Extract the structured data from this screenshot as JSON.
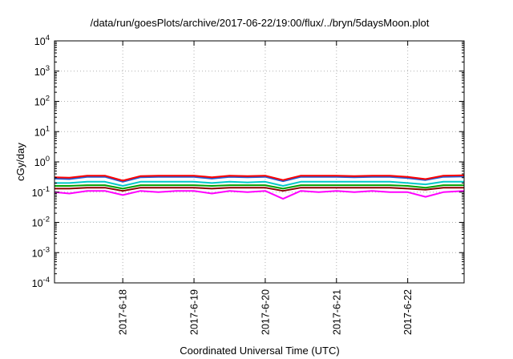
{
  "chart_data": {
    "type": "line",
    "title": "/data/run/goesPlots/archive/2017-06-22/19:00/flux/../bryn/5daysMoon.plot",
    "xlabel": "Coordinated Universal Time (UTC)",
    "ylabel": "cGy/day",
    "yscale": "log",
    "ylim": [
      0.0001,
      10000
    ],
    "xlim": [
      "2017-06-17T01:00",
      "2017-06-22T19:00"
    ],
    "grid": true,
    "legend": "none",
    "y_ticks": [
      {
        "base": "10",
        "exp": "-4"
      },
      {
        "base": "10",
        "exp": "-3"
      },
      {
        "base": "10",
        "exp": "-2"
      },
      {
        "base": "10",
        "exp": "-1"
      },
      {
        "base": "10",
        "exp": "0"
      },
      {
        "base": "10",
        "exp": "1"
      },
      {
        "base": "10",
        "exp": "2"
      },
      {
        "base": "10",
        "exp": "3"
      },
      {
        "base": "10",
        "exp": "4"
      }
    ],
    "x_ticks": [
      "2017-6-18",
      "2017-6-19",
      "2017-6-20",
      "2017-6-21",
      "2017-6-22"
    ],
    "series": [
      {
        "color": "#ff00ff",
        "x": [
          "2017-06-17T01:00",
          "2017-06-17T06:00",
          "2017-06-17T12:00",
          "2017-06-17T18:00",
          "2017-06-18T00:00",
          "2017-06-18T06:00",
          "2017-06-18T12:00",
          "2017-06-18T18:00",
          "2017-06-19T00:00",
          "2017-06-19T06:00",
          "2017-06-19T12:00",
          "2017-06-19T18:00",
          "2017-06-20T00:00",
          "2017-06-20T06:00",
          "2017-06-20T12:00",
          "2017-06-20T18:00",
          "2017-06-21T00:00",
          "2017-06-21T06:00",
          "2017-06-21T12:00",
          "2017-06-21T18:00",
          "2017-06-22T00:00",
          "2017-06-22T06:00",
          "2017-06-22T12:00",
          "2017-06-22T19:00"
        ],
        "values": [
          0.1,
          0.09,
          0.11,
          0.11,
          0.08,
          0.11,
          0.1,
          0.11,
          0.11,
          0.09,
          0.11,
          0.1,
          0.11,
          0.06,
          0.11,
          0.1,
          0.11,
          0.1,
          0.11,
          0.1,
          0.1,
          0.07,
          0.1,
          0.11
        ]
      },
      {
        "color": "#8b0000",
        "x": [
          "2017-06-17T01:00",
          "2017-06-17T06:00",
          "2017-06-17T12:00",
          "2017-06-17T18:00",
          "2017-06-18T00:00",
          "2017-06-18T06:00",
          "2017-06-18T12:00",
          "2017-06-18T18:00",
          "2017-06-19T00:00",
          "2017-06-19T06:00",
          "2017-06-19T12:00",
          "2017-06-19T18:00",
          "2017-06-20T00:00",
          "2017-06-20T06:00",
          "2017-06-20T12:00",
          "2017-06-20T18:00",
          "2017-06-21T00:00",
          "2017-06-21T06:00",
          "2017-06-21T12:00",
          "2017-06-21T18:00",
          "2017-06-22T00:00",
          "2017-06-22T06:00",
          "2017-06-22T12:00",
          "2017-06-22T19:00"
        ],
        "values": [
          0.13,
          0.13,
          0.14,
          0.14,
          0.11,
          0.14,
          0.14,
          0.14,
          0.14,
          0.13,
          0.14,
          0.14,
          0.14,
          0.11,
          0.14,
          0.14,
          0.14,
          0.14,
          0.14,
          0.14,
          0.13,
          0.12,
          0.14,
          0.14
        ]
      },
      {
        "color": "#00a000",
        "x": [
          "2017-06-17T01:00",
          "2017-06-17T06:00",
          "2017-06-17T12:00",
          "2017-06-17T18:00",
          "2017-06-18T00:00",
          "2017-06-18T06:00",
          "2017-06-18T12:00",
          "2017-06-18T18:00",
          "2017-06-19T00:00",
          "2017-06-19T06:00",
          "2017-06-19T12:00",
          "2017-06-19T18:00",
          "2017-06-20T00:00",
          "2017-06-20T06:00",
          "2017-06-20T12:00",
          "2017-06-20T18:00",
          "2017-06-21T00:00",
          "2017-06-21T06:00",
          "2017-06-21T12:00",
          "2017-06-21T18:00",
          "2017-06-22T00:00",
          "2017-06-22T06:00",
          "2017-06-22T12:00",
          "2017-06-22T19:00"
        ],
        "values": [
          0.16,
          0.16,
          0.17,
          0.17,
          0.13,
          0.17,
          0.17,
          0.17,
          0.17,
          0.16,
          0.17,
          0.17,
          0.17,
          0.13,
          0.17,
          0.17,
          0.17,
          0.17,
          0.17,
          0.17,
          0.16,
          0.14,
          0.17,
          0.17
        ]
      },
      {
        "color": "#00c8c8",
        "x": [
          "2017-06-17T01:00",
          "2017-06-17T06:00",
          "2017-06-17T12:00",
          "2017-06-17T18:00",
          "2017-06-18T00:00",
          "2017-06-18T06:00",
          "2017-06-18T12:00",
          "2017-06-18T18:00",
          "2017-06-19T00:00",
          "2017-06-19T06:00",
          "2017-06-19T12:00",
          "2017-06-19T18:00",
          "2017-06-20T00:00",
          "2017-06-20T06:00",
          "2017-06-20T12:00",
          "2017-06-20T18:00",
          "2017-06-21T00:00",
          "2017-06-21T06:00",
          "2017-06-21T12:00",
          "2017-06-21T18:00",
          "2017-06-22T00:00",
          "2017-06-22T06:00",
          "2017-06-22T12:00",
          "2017-06-22T19:00"
        ],
        "values": [
          0.2,
          0.2,
          0.22,
          0.22,
          0.16,
          0.22,
          0.22,
          0.22,
          0.22,
          0.2,
          0.22,
          0.21,
          0.22,
          0.16,
          0.22,
          0.22,
          0.22,
          0.22,
          0.22,
          0.22,
          0.2,
          0.18,
          0.22,
          0.22
        ]
      },
      {
        "color": "#1f5fd6",
        "x": [
          "2017-06-17T01:00",
          "2017-06-17T06:00",
          "2017-06-17T12:00",
          "2017-06-17T18:00",
          "2017-06-18T00:00",
          "2017-06-18T06:00",
          "2017-06-18T12:00",
          "2017-06-18T18:00",
          "2017-06-19T00:00",
          "2017-06-19T06:00",
          "2017-06-19T12:00",
          "2017-06-19T18:00",
          "2017-06-20T00:00",
          "2017-06-20T06:00",
          "2017-06-20T12:00",
          "2017-06-20T18:00",
          "2017-06-21T00:00",
          "2017-06-21T06:00",
          "2017-06-21T12:00",
          "2017-06-21T18:00",
          "2017-06-22T00:00",
          "2017-06-22T06:00",
          "2017-06-22T12:00",
          "2017-06-22T19:00"
        ],
        "values": [
          0.28,
          0.27,
          0.32,
          0.32,
          0.22,
          0.31,
          0.32,
          0.32,
          0.32,
          0.28,
          0.32,
          0.31,
          0.32,
          0.23,
          0.32,
          0.32,
          0.32,
          0.31,
          0.32,
          0.32,
          0.29,
          0.25,
          0.32,
          0.33
        ]
      },
      {
        "color": "#ff0000",
        "x": [
          "2017-06-17T01:00",
          "2017-06-17T06:00",
          "2017-06-17T12:00",
          "2017-06-17T18:00",
          "2017-06-18T00:00",
          "2017-06-18T06:00",
          "2017-06-18T12:00",
          "2017-06-18T18:00",
          "2017-06-19T00:00",
          "2017-06-19T06:00",
          "2017-06-19T12:00",
          "2017-06-19T18:00",
          "2017-06-20T00:00",
          "2017-06-20T06:00",
          "2017-06-20T12:00",
          "2017-06-20T18:00",
          "2017-06-21T00:00",
          "2017-06-21T06:00",
          "2017-06-21T12:00",
          "2017-06-21T18:00",
          "2017-06-22T00:00",
          "2017-06-22T06:00",
          "2017-06-22T12:00",
          "2017-06-22T19:00"
        ],
        "values": [
          0.31,
          0.3,
          0.35,
          0.35,
          0.24,
          0.34,
          0.35,
          0.35,
          0.35,
          0.31,
          0.35,
          0.34,
          0.35,
          0.25,
          0.35,
          0.35,
          0.35,
          0.34,
          0.35,
          0.35,
          0.32,
          0.27,
          0.35,
          0.36
        ]
      }
    ]
  }
}
